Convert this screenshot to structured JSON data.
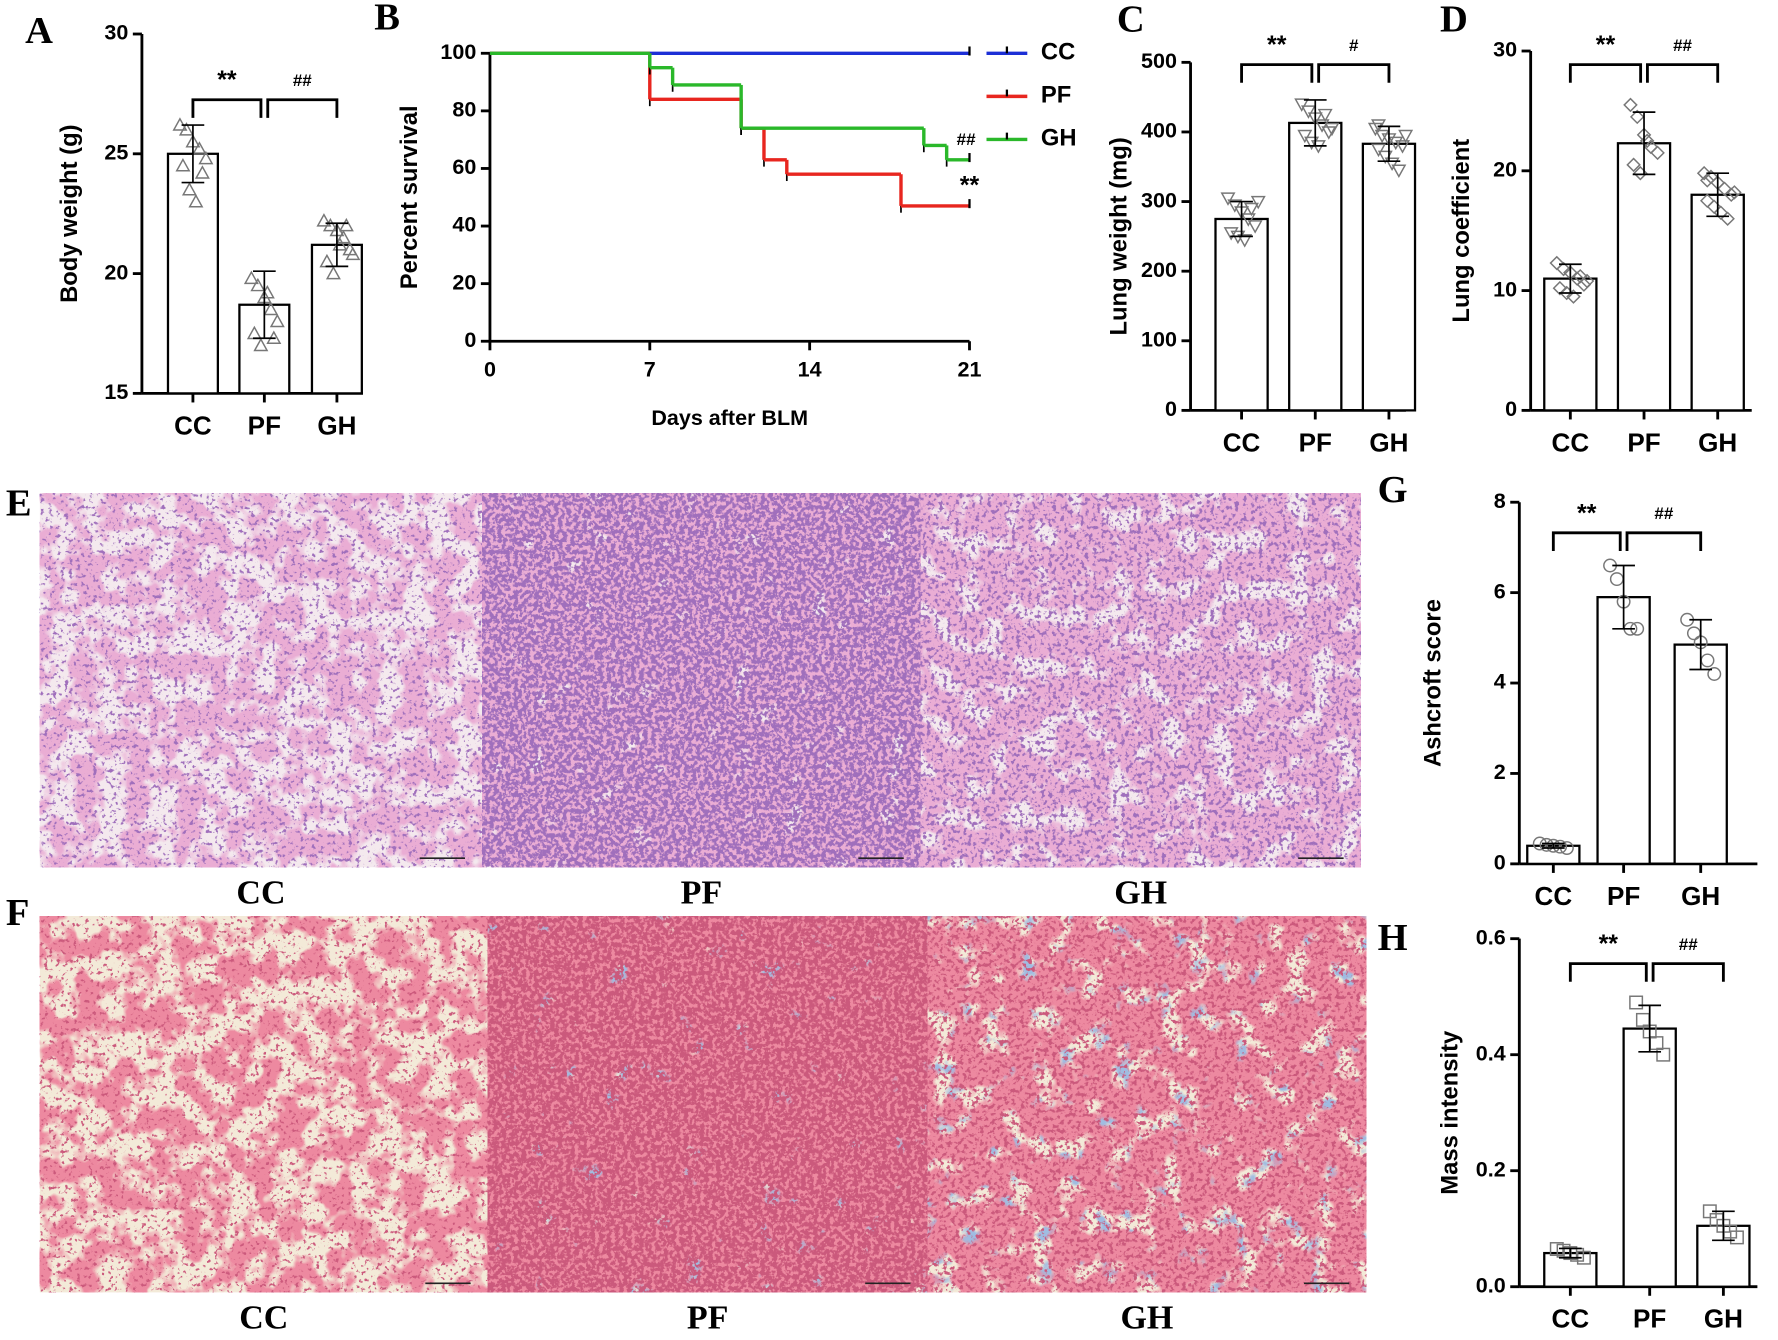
{
  "chart_data": [
    {
      "type": "bar",
      "panel": "A",
      "y_label": "Body weight (g)",
      "categories": [
        "CC",
        "PF",
        "GH"
      ],
      "values": [
        25.0,
        18.7,
        21.2
      ],
      "errors": [
        1.2,
        1.4,
        0.9
      ],
      "points": [
        [
          26.2,
          26.0,
          25.5,
          25.2,
          24.8,
          24.5,
          23.5,
          23.0,
          24.2
        ],
        [
          19.8,
          19.5,
          19.0,
          18.5,
          18.0,
          17.5,
          17.0,
          19.2,
          17.3
        ],
        [
          22.2,
          22.0,
          21.8,
          21.5,
          21.0,
          20.5,
          20.0,
          21.2,
          22.0,
          20.8
        ]
      ],
      "marker": "triangle-up",
      "color": "#ffffff",
      "ylim": [
        15,
        30
      ],
      "yticks": [
        15,
        20,
        25,
        30
      ],
      "annotations": [
        "**",
        "##"
      ]
    },
    {
      "type": "line",
      "step": true,
      "panel": "B",
      "x_label": "Days after BLM",
      "y_label": "Percent survival",
      "xlim": [
        0,
        21
      ],
      "xticks": [
        0,
        7,
        14,
        21
      ],
      "ylim": [
        0,
        100
      ],
      "yticks": [
        0,
        20,
        40,
        60,
        80,
        100
      ],
      "legend": "right",
      "series": [
        {
          "name": "CC",
          "color": "#1c2fd6",
          "x": [
            0,
            21
          ],
          "values": [
            100,
            100
          ]
        },
        {
          "name": "PF",
          "color": "#e8261f",
          "x": [
            0,
            7,
            11,
            12,
            13,
            18,
            21
          ],
          "values": [
            100,
            84,
            74,
            63,
            58,
            47,
            47
          ]
        },
        {
          "name": "GH",
          "color": "#2ab82a",
          "x": [
            0,
            7,
            8,
            11,
            19,
            20,
            21
          ],
          "values": [
            100,
            95,
            89,
            74,
            68,
            63,
            63
          ]
        }
      ],
      "annotations": [
        "##",
        "**"
      ]
    },
    {
      "type": "bar",
      "panel": "C",
      "y_label": "Lung weight (mg)",
      "categories": [
        "CC",
        "PF",
        "GH"
      ],
      "values": [
        275,
        413,
        383
      ],
      "errors": [
        25,
        33,
        25
      ],
      "points": [
        [
          305,
          295,
          285,
          275,
          265,
          255,
          250,
          245,
          290,
          300
        ],
        [
          440,
          430,
          420,
          410,
          400,
          395,
          385,
          380,
          425,
          405
        ],
        [
          405,
          395,
          390,
          385,
          380,
          375,
          365,
          355,
          345,
          395,
          410
        ]
      ],
      "marker": "triangle-down",
      "color": "#ffffff",
      "ylim": [
        0,
        500
      ],
      "yticks": [
        0,
        100,
        200,
        300,
        400,
        500
      ],
      "annotations": [
        "**",
        "#"
      ]
    },
    {
      "type": "bar",
      "panel": "D",
      "y_label": "Lung coefficient",
      "categories": [
        "CC",
        "PF",
        "GH"
      ],
      "values": [
        11.0,
        22.3,
        18.0
      ],
      "errors": [
        1.2,
        2.6,
        1.8
      ],
      "points": [
        [
          12.3,
          11.8,
          11.5,
          11.0,
          10.5,
          10.2,
          9.8,
          9.5,
          11.2,
          10.8
        ],
        [
          25.5,
          24.5,
          23.0,
          22.0,
          21.5,
          20.5,
          19.8,
          22.5
        ],
        [
          19.8,
          19.5,
          19.0,
          18.5,
          18.0,
          17.5,
          17.0,
          16.5,
          16.0,
          18.2,
          19.2
        ]
      ],
      "marker": "diamond",
      "color": "#ffffff",
      "ylim": [
        0,
        30
      ],
      "yticks": [
        0,
        10,
        20,
        30
      ],
      "annotations": [
        "**",
        "##"
      ]
    },
    {
      "type": "bar",
      "panel": "G",
      "y_label": "Ashcroft score",
      "categories": [
        "CC",
        "PF",
        "GH"
      ],
      "values": [
        0.4,
        5.9,
        4.85
      ],
      "errors": [
        0.05,
        0.7,
        0.55
      ],
      "points": [
        [
          0.45,
          0.42,
          0.4,
          0.38,
          0.35
        ],
        [
          6.6,
          6.3,
          5.8,
          5.2,
          5.2
        ],
        [
          5.4,
          5.1,
          4.9,
          4.5,
          4.2
        ]
      ],
      "marker": "circle",
      "color": "#ffffff",
      "ylim": [
        0,
        8
      ],
      "yticks": [
        0,
        2,
        4,
        6,
        8
      ],
      "annotations": [
        "**",
        "##"
      ]
    },
    {
      "type": "bar",
      "panel": "H",
      "y_label": "Mass intensity",
      "categories": [
        "CC",
        "PF",
        "GH"
      ],
      "values": [
        0.058,
        0.445,
        0.105
      ],
      "errors": [
        0.008,
        0.04,
        0.025
      ],
      "points": [
        [
          0.065,
          0.062,
          0.058,
          0.055,
          0.05
        ],
        [
          0.49,
          0.46,
          0.44,
          0.42,
          0.4
        ],
        [
          0.13,
          0.115,
          0.105,
          0.095,
          0.085
        ]
      ],
      "marker": "square",
      "color": "#ffffff",
      "ylim": [
        0,
        0.6
      ],
      "yticks": [
        {
          "value": 0,
          "label": "0.0"
        },
        0.2,
        0.4,
        0.6
      ],
      "annotations": [
        "**",
        "##"
      ]
    }
  ],
  "figure_panels": [
    {
      "panel": "E",
      "labels": [
        "CC",
        "PF",
        "GH"
      ]
    },
    {
      "panel": "F",
      "labels": [
        "CC",
        "PF",
        "GH"
      ]
    }
  ]
}
